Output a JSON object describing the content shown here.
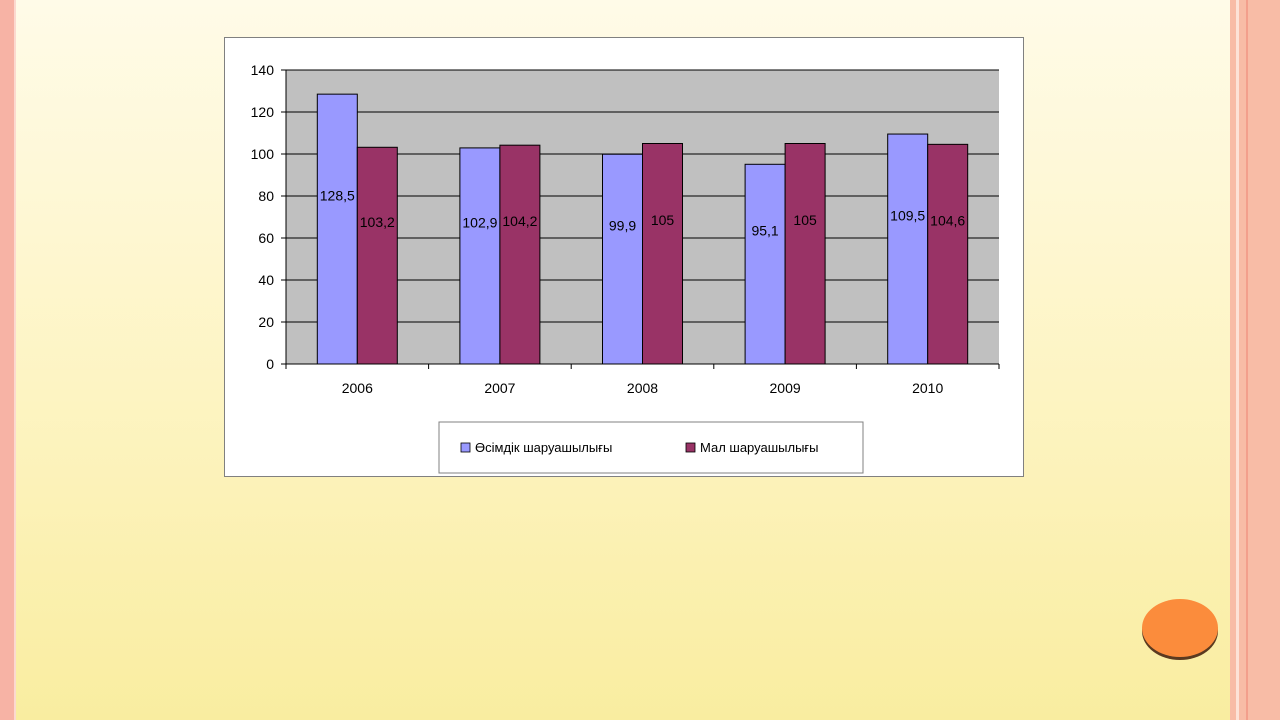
{
  "chart_data": {
    "type": "bar",
    "categories": [
      "2006",
      "2007",
      "2008",
      "2009",
      "2010"
    ],
    "series": [
      {
        "name": "Өсімдік шаруашылығы",
        "values": [
          128.5,
          102.9,
          99.9,
          95.1,
          109.5
        ],
        "labels": [
          "128,5",
          "102,9",
          "99,9",
          "95,1",
          "109,5"
        ],
        "color": "#9999ff"
      },
      {
        "name": "Мал шаруашылығы",
        "values": [
          103.2,
          104.2,
          105,
          105,
          104.6
        ],
        "labels": [
          "103,2",
          "104,2",
          "105",
          "105",
          "104,6"
        ],
        "color": "#993366"
      }
    ],
    "ylim": [
      0,
      140
    ],
    "yticks": [
      "0",
      "20",
      "40",
      "60",
      "80",
      "100",
      "120",
      "140"
    ],
    "grid": true,
    "plot_background": "#c0c0c0",
    "legend_position": "bottom"
  },
  "colors": {
    "frame_accent": "#f7b3a5",
    "nav_button": "#fb8c3c"
  }
}
